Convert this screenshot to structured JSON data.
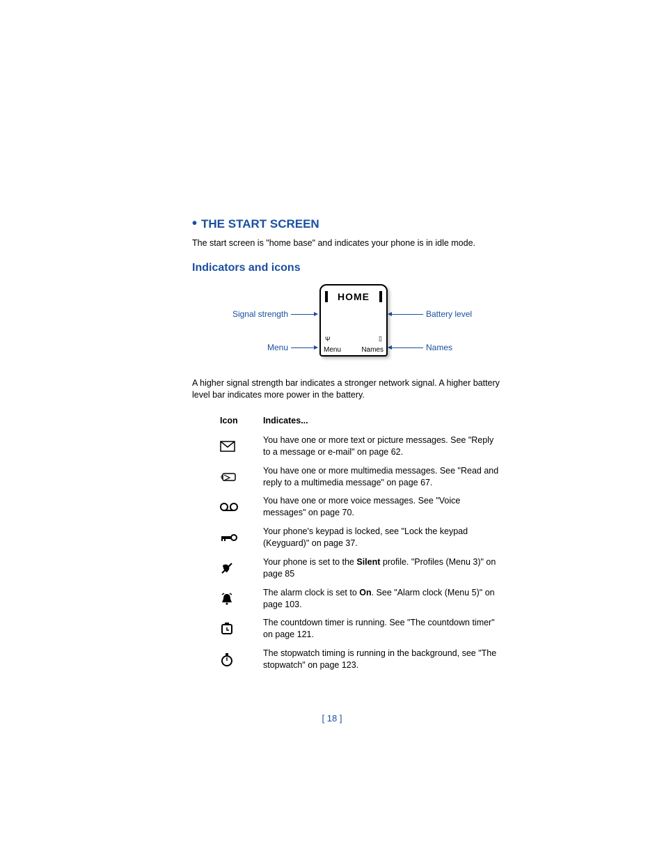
{
  "colors": {
    "heading_blue": "#1a4fa0",
    "text_black": "#000000",
    "background": "#ffffff"
  },
  "typography": {
    "body_fontsize": 12.5,
    "heading_fontsize": 17,
    "subheading_fontsize": 16
  },
  "section_title": "THE START SCREEN",
  "intro": "The start screen is \"home base\" and indicates your phone is in idle mode.",
  "subsection_title": "Indicators and icons",
  "diagram": {
    "screen_title": "HOME",
    "softkey_left": "Menu",
    "softkey_right": "Names",
    "labels": {
      "signal_strength": "Signal strength",
      "battery_level": "Battery level",
      "menu": "Menu",
      "names": "Names"
    }
  },
  "explainer": "A higher signal strength bar indicates a stronger network signal. A higher battery level bar indicates more power in the battery.",
  "table": {
    "headers": {
      "icon": "Icon",
      "indicates": "Indicates..."
    },
    "rows": [
      {
        "icon_name": "envelope-icon",
        "text_pre": "You have one or more text or picture messages. See \"Reply to a message or e-mail\" on page 62.",
        "bold": null
      },
      {
        "icon_name": "mms-icon",
        "text_pre": "You have one or more multimedia messages. See \"Read and reply to a multimedia message\" on page 67.",
        "bold": null
      },
      {
        "icon_name": "voicemail-icon",
        "text_pre": "You have one or more voice messages. See \"Voice messages\" on page 70.",
        "bold": null
      },
      {
        "icon_name": "key-lock-icon",
        "text_pre": "Your phone's keypad is locked, see \"Lock the keypad (Keyguard)\" on page 37.",
        "bold": null
      },
      {
        "icon_name": "silent-icon",
        "text_pre": "Your phone is set to the ",
        "bold": "Silent",
        "text_post": " profile. \"Profiles (Menu 3)\" on page 85"
      },
      {
        "icon_name": "alarm-icon",
        "text_pre": "The alarm clock is set to ",
        "bold": "On",
        "text_post": ". See \"Alarm clock (Menu 5)\" on page 103."
      },
      {
        "icon_name": "timer-icon",
        "text_pre": "The countdown timer is running. See \"The countdown timer\" on page 121.",
        "bold": null
      },
      {
        "icon_name": "stopwatch-icon",
        "text_pre": "The stopwatch timing is running in the background, see \"The stopwatch\" on page 123.",
        "bold": null
      }
    ]
  },
  "page_number": "[ 18 ]"
}
